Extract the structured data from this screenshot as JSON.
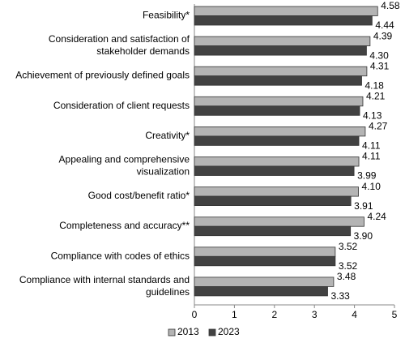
{
  "chart_data": {
    "type": "hbar",
    "categories": [
      "Feasibility*",
      "Consideration and satisfaction of\nstakeholder demands",
      "Achievement of previously defined goals",
      "Consideration of client requests",
      "Creativity*",
      "Appealing and comprehensive\nvisualization",
      "Good cost/benefit ratio*",
      "Completeness and accuracy**",
      "Compliance with codes of ethics",
      "Compliance with internal standards and\nguidelines"
    ],
    "series": [
      {
        "name": "2013",
        "color": "#b4b4b4",
        "values": [
          4.58,
          4.39,
          4.31,
          4.21,
          4.27,
          4.11,
          4.1,
          4.24,
          3.52,
          3.48
        ],
        "value_labels": [
          "4.58",
          "4.39",
          "4.31",
          "4.21",
          "4.27",
          "4.11",
          "4.10",
          "4.24",
          "3.52",
          "3.48"
        ]
      },
      {
        "name": "2023",
        "color": "#424242",
        "values": [
          4.44,
          4.3,
          4.18,
          4.13,
          4.11,
          3.99,
          3.91,
          3.9,
          3.52,
          3.33
        ],
        "value_labels": [
          "4.44",
          "4.30",
          "4.18",
          "4.13",
          "4.11",
          "3.99",
          "3.91",
          "3.90",
          "3.52",
          "3.33"
        ]
      }
    ],
    "xlim": [
      0,
      5
    ],
    "xticks": [
      0,
      1,
      2,
      3,
      4,
      5
    ],
    "legend": "bottom"
  }
}
